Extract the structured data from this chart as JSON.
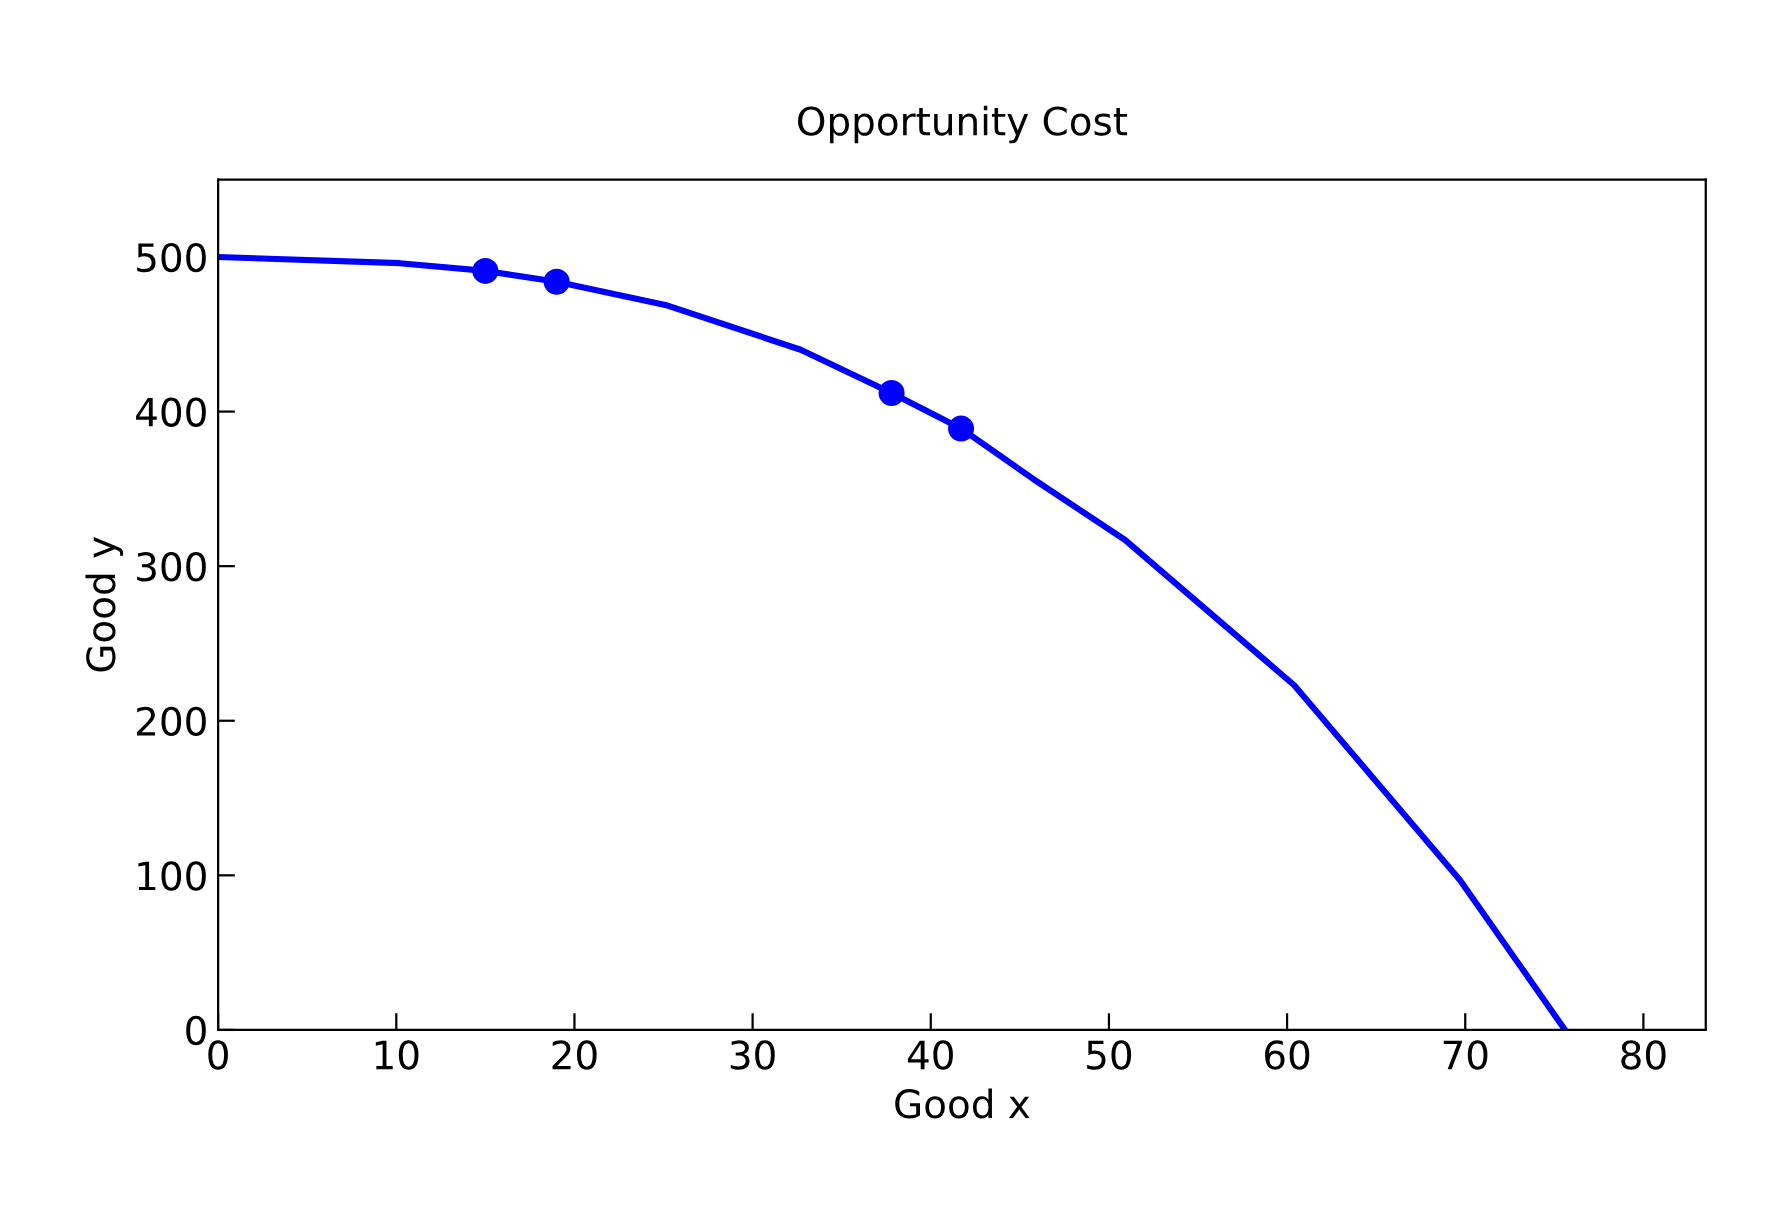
{
  "chart_data": {
    "type": "line",
    "title": "Opportunity Cost",
    "xlabel": "Good x",
    "ylabel": "Good y",
    "xlim": [
      0,
      83.5
    ],
    "ylim": [
      0,
      550
    ],
    "xticks": [
      0,
      10,
      20,
      30,
      40,
      50,
      60,
      70,
      80
    ],
    "yticks": [
      0,
      100,
      200,
      300,
      400,
      500
    ],
    "grid": false,
    "legend": false,
    "series": [
      {
        "color": "#0000ff",
        "marker": "none",
        "line_style": "solid",
        "x": [
          0,
          10.2,
          15,
          19,
          25.1,
          32.7,
          37.8,
          41.7,
          45.8,
          50.9,
          60.4,
          69.7,
          75.6
        ],
        "values": [
          500,
          496,
          491,
          484,
          469,
          440,
          412,
          389,
          356,
          317,
          223,
          97,
          0
        ]
      },
      {
        "type": "scatter",
        "color": "#0000ff",
        "marker": "circle",
        "x": [
          15,
          19,
          37.8,
          41.7
        ],
        "values": [
          491,
          484,
          412,
          389
        ]
      }
    ]
  }
}
